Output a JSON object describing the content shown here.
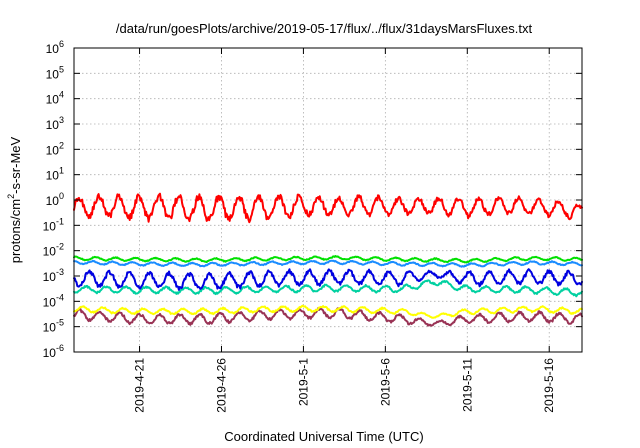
{
  "chart_data": {
    "type": "line",
    "title": "/data/run/goesPlots/archive/2019-05-17/flux/../flux/31daysMarsFluxes.txt",
    "xlabel": "Coordinated Universal Time (UTC)",
    "ylabel": {
      "pre": "protons/cm",
      "sup": "2",
      "post": "-s-sr-MeV"
    },
    "y_scale": "log",
    "ylim": [
      1e-06,
      1000000.0
    ],
    "y_ticks": [
      {
        "base": "10",
        "exp": "6"
      },
      {
        "base": "10",
        "exp": "5"
      },
      {
        "base": "10",
        "exp": "4"
      },
      {
        "base": "10",
        "exp": "3"
      },
      {
        "base": "10",
        "exp": "2"
      },
      {
        "base": "10",
        "exp": "1"
      },
      {
        "base": "10",
        "exp": "0"
      },
      {
        "base": "10",
        "exp": "-1"
      },
      {
        "base": "10",
        "exp": "-2"
      },
      {
        "base": "10",
        "exp": "-3"
      },
      {
        "base": "10",
        "exp": "-4"
      },
      {
        "base": "10",
        "exp": "-5"
      },
      {
        "base": "10",
        "exp": "-6"
      }
    ],
    "xlim": [
      "2019-04-17",
      "2019-05-18"
    ],
    "x_ticks": [
      "2019-4-21",
      "2019-4-26",
      "2019-5-1",
      "2019-5-6",
      "2019-5-11",
      "2019-5-16"
    ],
    "grid": true,
    "series": [
      {
        "color": "#ff0000",
        "x": [
          "2019-04-17",
          "2019-04-19",
          "2019-04-21",
          "2019-04-23",
          "2019-04-25",
          "2019-04-27",
          "2019-04-29",
          "2019-05-01",
          "2019-05-03",
          "2019-05-05",
          "2019-05-07",
          "2019-05-09",
          "2019-05-11",
          "2019-05-13",
          "2019-05-15",
          "2019-05-17",
          "2019-05-18"
        ],
        "y": [
          0.5,
          0.6,
          0.5,
          0.5,
          0.45,
          0.5,
          0.5,
          0.6,
          0.55,
          0.6,
          0.55,
          0.6,
          0.5,
          0.6,
          0.55,
          0.45,
          0.3
        ],
        "amp": [
          0.35,
          0.4,
          0.45,
          0.45,
          0.45,
          0.45,
          0.45,
          0.35,
          0.35,
          0.35,
          0.3,
          0.3,
          0.35,
          0.3,
          0.3,
          0.3,
          0.3
        ]
      },
      {
        "color": "#00e000",
        "x": [
          "2019-04-17",
          "2019-04-21",
          "2019-04-25",
          "2019-04-29",
          "2019-05-03",
          "2019-05-07",
          "2019-05-11",
          "2019-05-15",
          "2019-05-18"
        ],
        "y": [
          0.005,
          0.0045,
          0.0042,
          0.0048,
          0.0052,
          0.0045,
          0.004,
          0.005,
          0.0045
        ],
        "amp": [
          0.06,
          0.06,
          0.06,
          0.06,
          0.06,
          0.06,
          0.06,
          0.06,
          0.06
        ]
      },
      {
        "color": "#1a8cff",
        "x": [
          "2019-04-17",
          "2019-04-21",
          "2019-04-25",
          "2019-04-29",
          "2019-05-03",
          "2019-05-07",
          "2019-05-11",
          "2019-05-15",
          "2019-05-18"
        ],
        "y": [
          0.0035,
          0.003,
          0.0028,
          0.0032,
          0.0035,
          0.003,
          0.0027,
          0.0033,
          0.003
        ],
        "amp": [
          0.06,
          0.06,
          0.06,
          0.06,
          0.06,
          0.06,
          0.06,
          0.06,
          0.06
        ]
      },
      {
        "color": "#0000e0",
        "x": [
          "2019-04-17",
          "2019-04-21",
          "2019-04-25",
          "2019-04-29",
          "2019-05-03",
          "2019-05-07",
          "2019-05-09",
          "2019-05-11",
          "2019-05-15",
          "2019-05-18"
        ],
        "y": [
          0.0008,
          0.0007,
          0.0006,
          0.0008,
          0.0009,
          0.0008,
          0.0012,
          0.0008,
          0.0009,
          0.0008
        ],
        "amp": [
          0.28,
          0.28,
          0.28,
          0.28,
          0.25,
          0.25,
          0.1,
          0.25,
          0.25,
          0.25
        ]
      },
      {
        "color": "#00d0a0",
        "x": [
          "2019-04-17",
          "2019-04-21",
          "2019-04-25",
          "2019-04-29",
          "2019-05-03",
          "2019-05-07",
          "2019-05-09",
          "2019-05-11",
          "2019-05-15",
          "2019-05-18"
        ],
        "y": [
          0.0003,
          0.00028,
          0.00027,
          0.0003,
          0.00033,
          0.0003,
          0.0006,
          0.0003,
          0.00028,
          0.00022
        ],
        "amp": [
          0.12,
          0.12,
          0.12,
          0.12,
          0.12,
          0.12,
          0.1,
          0.12,
          0.12,
          0.12
        ]
      },
      {
        "color": "#ffff00",
        "x": [
          "2019-04-17",
          "2019-04-21",
          "2019-04-25",
          "2019-04-29",
          "2019-05-03",
          "2019-05-07",
          "2019-05-09",
          "2019-05-11",
          "2019-05-15",
          "2019-05-18"
        ],
        "y": [
          5e-05,
          4e-05,
          4e-05,
          5e-05,
          5e-05,
          4e-05,
          2.5e-05,
          4e-05,
          5e-05,
          4e-05
        ],
        "amp": [
          0.1,
          0.1,
          0.1,
          0.1,
          0.1,
          0.1,
          0.05,
          0.1,
          0.1,
          0.1
        ]
      },
      {
        "color": "#993355",
        "x": [
          "2019-04-17",
          "2019-04-21",
          "2019-04-25",
          "2019-04-29",
          "2019-05-03",
          "2019-05-07",
          "2019-05-09",
          "2019-05-11",
          "2019-05-15",
          "2019-05-18"
        ],
        "y": [
          3e-05,
          2e-05,
          2e-05,
          3e-05,
          3.5e-05,
          2e-05,
          1.3e-05,
          2e-05,
          2.5e-05,
          2e-05
        ],
        "amp": [
          0.18,
          0.18,
          0.18,
          0.18,
          0.18,
          0.16,
          0.08,
          0.16,
          0.18,
          0.18
        ]
      }
    ]
  }
}
